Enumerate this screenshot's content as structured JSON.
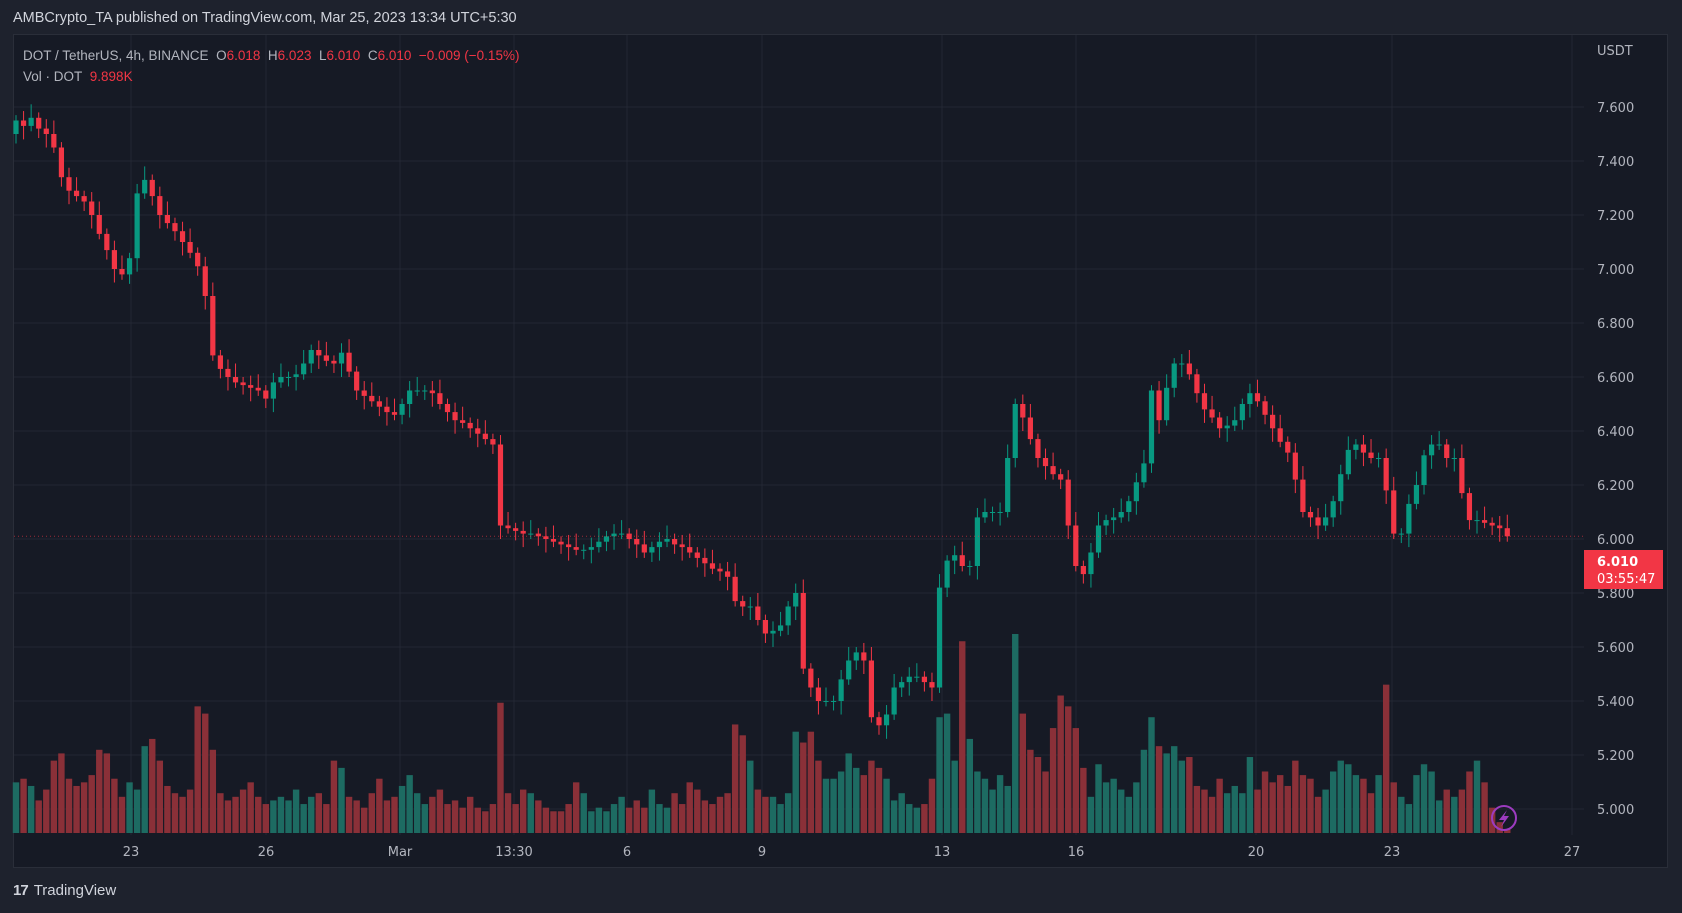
{
  "header": {
    "published": "AMBCrypto_TA published on TradingView.com, Mar 25, 2023 13:34 UTC+5:30"
  },
  "legend": {
    "symbol": "DOT / TetherUS, 4h, BINANCE",
    "o_label": "O",
    "o": "6.018",
    "h_label": "H",
    "h": "6.023",
    "l_label": "L",
    "l": "6.010",
    "c_label": "C",
    "c": "6.010",
    "change": "−0.009 (−0.15%)",
    "vol_label": "Vol · DOT",
    "vol": "9.898K"
  },
  "footer": {
    "brand": "TradingView"
  },
  "colors": {
    "up": "#089981",
    "down": "#f23645",
    "vol_up": "#1d6b62",
    "vol_down": "#8a3038",
    "grid": "#232734",
    "background": "#161a25",
    "icon": "#9c3bc0"
  },
  "icons": {
    "lightning": "lightning-icon",
    "logo": "tradingview-logo-icon"
  },
  "chart_data": {
    "type": "candlestick",
    "interval": "4h",
    "price_axis_label": "USDT",
    "ylim": [
      4.9,
      7.75
    ],
    "price_ticks": [
      "7.600",
      "7.400",
      "7.200",
      "7.000",
      "6.800",
      "6.600",
      "6.400",
      "6.200",
      "6.000",
      "5.800",
      "5.600",
      "5.400",
      "5.200",
      "5.000"
    ],
    "date_ticks": [
      "23",
      "26",
      "Mar",
      "13:30",
      "6",
      "9",
      "13",
      "16",
      "20",
      "23",
      "27"
    ],
    "current_price": "6.010",
    "countdown": "03:55:47",
    "first_open": 7.5,
    "close": [
      7.55,
      7.53,
      7.56,
      7.52,
      7.5,
      7.45,
      7.34,
      7.29,
      7.27,
      7.25,
      7.2,
      7.13,
      7.07,
      7.0,
      6.98,
      7.04,
      7.28,
      7.33,
      7.27,
      7.2,
      7.17,
      7.14,
      7.1,
      7.06,
      7.01,
      6.9,
      6.68,
      6.63,
      6.6,
      6.58,
      6.57,
      6.56,
      6.55,
      6.52,
      6.58,
      6.6,
      6.6,
      6.61,
      6.65,
      6.7,
      6.68,
      6.66,
      6.65,
      6.69,
      6.62,
      6.55,
      6.53,
      6.51,
      6.49,
      6.47,
      6.46,
      6.5,
      6.55,
      6.55,
      6.55,
      6.54,
      6.5,
      6.47,
      6.44,
      6.43,
      6.41,
      6.39,
      6.37,
      6.35,
      6.05,
      6.04,
      6.03,
      6.02,
      6.02,
      6.01,
      6.0,
      5.99,
      5.98,
      5.97,
      5.96,
      5.96,
      5.97,
      5.99,
      6.01,
      6.02,
      6.02,
      6.0,
      5.98,
      5.95,
      5.97,
      5.99,
      6.0,
      5.98,
      5.97,
      5.95,
      5.93,
      5.91,
      5.89,
      5.88,
      5.86,
      5.77,
      5.75,
      5.75,
      5.7,
      5.65,
      5.66,
      5.68,
      5.75,
      5.8,
      5.52,
      5.45,
      5.4,
      5.4,
      5.4,
      5.48,
      5.55,
      5.58,
      5.55,
      5.34,
      5.31,
      5.35,
      5.45,
      5.47,
      5.49,
      5.49,
      5.47,
      5.45,
      5.82,
      5.92,
      5.94,
      5.9,
      5.9,
      6.08,
      6.1,
      6.1,
      6.1,
      6.3,
      6.5,
      6.45,
      6.37,
      6.3,
      6.27,
      6.24,
      6.22,
      6.05,
      5.9,
      5.87,
      5.95,
      6.05,
      6.07,
      6.08,
      6.1,
      6.14,
      6.21,
      6.28,
      6.55,
      6.44,
      6.56,
      6.65,
      6.65,
      6.61,
      6.54,
      6.48,
      6.45,
      6.41,
      6.42,
      6.44,
      6.5,
      6.54,
      6.51,
      6.46,
      6.41,
      6.36,
      6.32,
      6.22,
      6.1,
      6.08,
      6.05,
      6.08,
      6.14,
      6.24,
      6.33,
      6.35,
      6.32,
      6.3,
      6.3,
      6.18,
      6.02,
      6.02,
      6.13,
      6.2,
      6.31,
      6.35,
      6.35,
      6.3,
      6.3,
      6.17,
      6.07,
      6.07,
      6.06,
      6.05,
      6.04,
      6.01
    ],
    "volume_k": [
      140,
      150,
      130,
      90,
      120,
      200,
      220,
      150,
      130,
      140,
      160,
      230,
      220,
      150,
      100,
      140,
      120,
      240,
      260,
      200,
      130,
      110,
      100,
      120,
      350,
      330,
      230,
      110,
      90,
      100,
      120,
      140,
      100,
      80,
      90,
      100,
      90,
      120,
      80,
      100,
      110,
      80,
      200,
      180,
      100,
      90,
      70,
      110,
      150,
      90,
      100,
      130,
      160,
      110,
      80,
      100,
      120,
      80,
      90,
      70,
      100,
      70,
      60,
      80,
      360,
      110,
      80,
      120,
      110,
      90,
      70,
      60,
      60,
      80,
      140,
      110,
      60,
      70,
      60,
      80,
      100,
      70,
      90,
      70,
      120,
      80,
      70,
      110,
      80,
      140,
      120,
      90,
      80,
      100,
      110,
      300,
      270,
      200,
      120,
      100,
      100,
      80,
      110,
      280,
      250,
      280,
      200,
      150,
      150,
      170,
      220,
      180,
      160,
      200,
      180,
      150,
      90,
      110,
      80,
      70,
      80,
      150,
      320,
      330,
      200,
      530,
      260,
      170,
      150,
      120,
      160,
      130,
      550,
      330,
      230,
      210,
      170,
      290,
      380,
      350,
      290,
      180,
      100,
      190,
      140,
      150,
      120,
      100,
      140,
      230,
      320,
      240,
      220,
      240,
      200,
      210,
      130,
      120,
      100,
      150,
      110,
      130,
      110,
      210,
      120,
      170,
      140,
      160,
      130,
      200,
      160,
      150,
      100,
      120,
      170,
      200,
      190,
      160,
      150,
      110,
      160,
      410,
      140,
      100,
      80,
      160,
      190,
      170,
      90,
      120,
      100,
      120,
      170,
      200,
      140,
      70,
      30,
      9.898
    ]
  }
}
